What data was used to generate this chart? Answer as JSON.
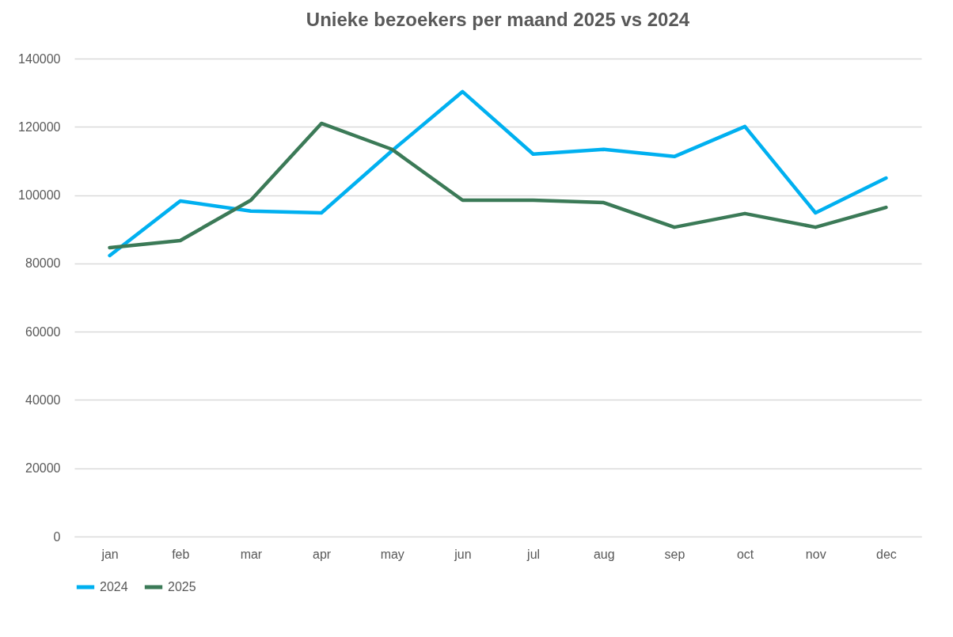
{
  "chart_data": {
    "type": "line",
    "title": "Unieke bezoekers per maand 2025 vs 2024",
    "categories": [
      "jan",
      "feb",
      "mar",
      "apr",
      "may",
      "jun",
      "jul",
      "aug",
      "sep",
      "oct",
      "nov",
      "dec"
    ],
    "series": [
      {
        "name": "2024",
        "color": "#00b0f0",
        "values": [
          82300,
          98300,
          95300,
          94800,
          113000,
          130300,
          112000,
          113400,
          111300,
          120100,
          94800,
          105000
        ]
      },
      {
        "name": "2025",
        "color": "#3b7a57",
        "values": [
          84600,
          86700,
          98500,
          121000,
          113400,
          98500,
          98500,
          97800,
          90600,
          94600,
          90600,
          96400
        ]
      }
    ],
    "ylim": [
      0,
      140000
    ],
    "yticks": [
      0,
      20000,
      40000,
      60000,
      80000,
      100000,
      120000,
      140000
    ],
    "grid": "y",
    "legend": "bottom",
    "marker": "none",
    "line_style": "solid"
  }
}
